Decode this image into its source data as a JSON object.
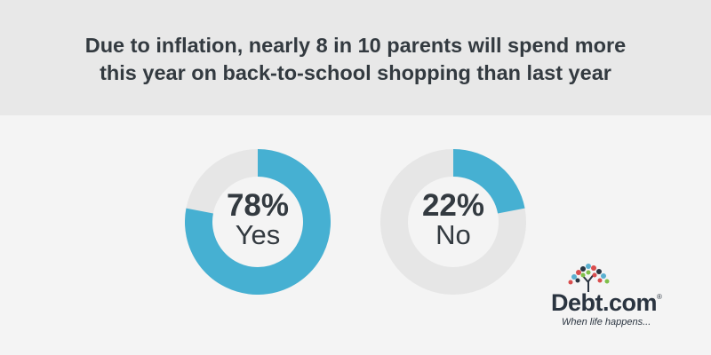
{
  "header": {
    "title_line1": "Due to inflation, nearly 8 in 10 parents will spend more",
    "title_line2": "this year on back-to-school shopping than last year"
  },
  "colors": {
    "accent": "#46b0d2",
    "track": "#e6e6e6",
    "header_bg": "#e8e8e8",
    "page_bg": "#f4f4f4",
    "text": "#333a40"
  },
  "chart_data": {
    "type": "pie",
    "title": "Due to inflation, nearly 8 in 10 parents will spend more this year on back-to-school shopping than last year",
    "charts": [
      {
        "label": "Yes",
        "value": 78,
        "value_text": "78%"
      },
      {
        "label": "No",
        "value": 22,
        "value_text": "22%"
      }
    ]
  },
  "logo": {
    "brand": "Debt.com",
    "reg": "®",
    "tagline": "When life happens..."
  }
}
